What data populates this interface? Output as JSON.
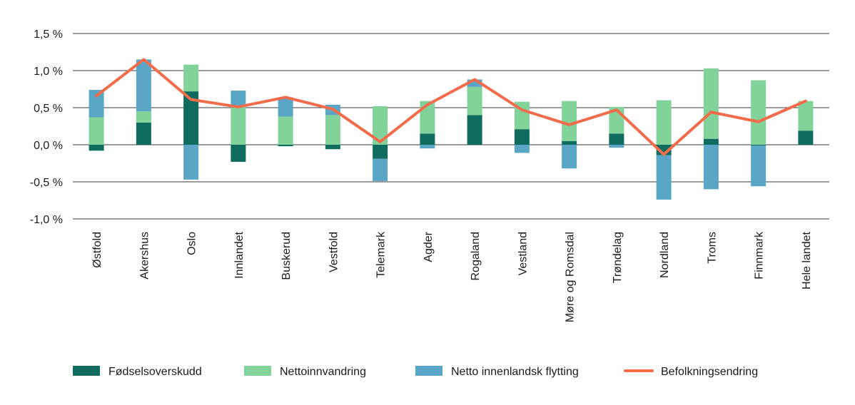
{
  "chart_data": {
    "type": "bar",
    "stacked": true,
    "ylim": [
      -1.0,
      1.5
    ],
    "yticks": [
      -1.0,
      -0.5,
      0.0,
      0.5,
      1.0,
      1.5
    ],
    "ytick_labels": [
      "-1,0 %",
      "-0,5 %",
      "0,0 %",
      "0,5 %",
      "1,0 %",
      "1,5 %"
    ],
    "grid": true,
    "legend_position": "bottom",
    "categories": [
      "Østfold",
      "Akershus",
      "Oslo",
      "Innlandet",
      "Buskerud",
      "Vestfold",
      "Telemark",
      "Agder",
      "Rogaland",
      "Vestland",
      "Møre og Romsdal",
      "Trøndelag",
      "Nordland",
      "Troms",
      "Finnmark",
      "Hele landet"
    ],
    "series": [
      {
        "name": "Fødselsoverskudd",
        "kind": "bar",
        "color": "#0f6b5e",
        "values": [
          -0.08,
          0.3,
          0.72,
          -0.23,
          -0.02,
          -0.06,
          -0.19,
          0.15,
          0.4,
          0.21,
          0.05,
          0.15,
          -0.14,
          0.08,
          -0.01,
          0.19
        ]
      },
      {
        "name": "Nettoinnvandring",
        "kind": "bar",
        "color": "#82d39a",
        "values": [
          0.37,
          0.15,
          0.36,
          0.51,
          0.38,
          0.4,
          0.52,
          0.44,
          0.38,
          0.37,
          0.54,
          0.36,
          0.6,
          0.95,
          0.87,
          0.4
        ]
      },
      {
        "name": "Netto innenlandsk flytting",
        "kind": "bar",
        "color": "#5aa6c6",
        "values": [
          0.37,
          0.7,
          -0.47,
          0.22,
          0.26,
          0.14,
          -0.3,
          -0.05,
          0.1,
          -0.11,
          -0.32,
          -0.04,
          -0.6,
          -0.6,
          -0.55,
          0.0
        ]
      },
      {
        "name": "Befolkningsendring",
        "kind": "line",
        "color": "#f26b4a",
        "values": [
          0.66,
          1.15,
          0.61,
          0.51,
          0.64,
          0.48,
          0.04,
          0.54,
          0.88,
          0.47,
          0.27,
          0.47,
          -0.13,
          0.44,
          0.31,
          0.59
        ]
      }
    ]
  }
}
